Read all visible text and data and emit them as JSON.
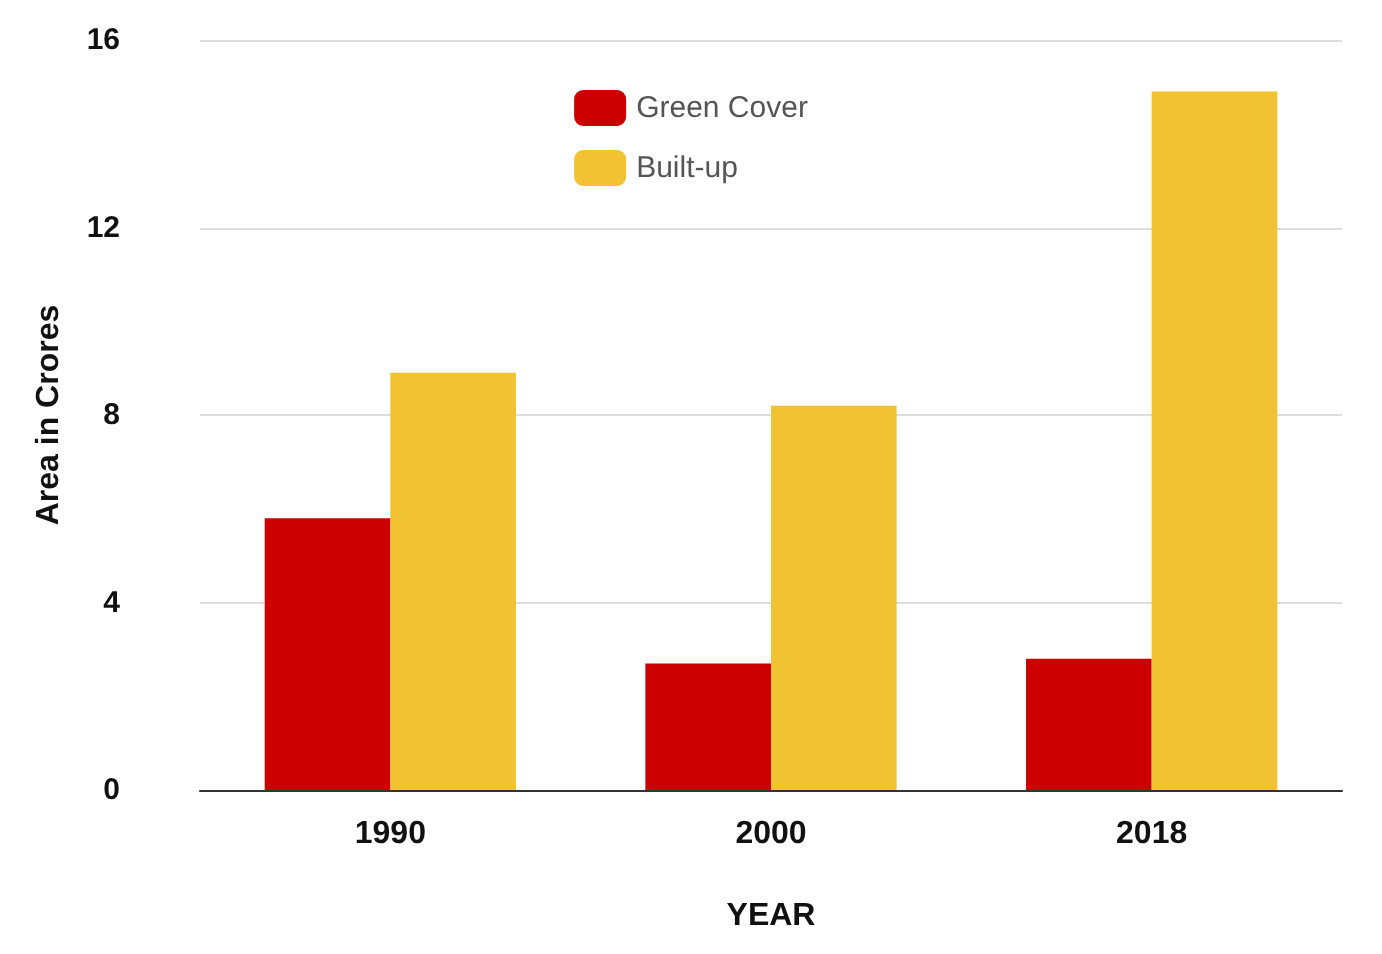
{
  "chart_data": {
    "type": "bar",
    "xlabel": "YEAR",
    "ylabel": "Area in Crores",
    "categories": [
      "1990",
      "2000",
      "2018"
    ],
    "series": [
      {
        "name": "Green Cover",
        "color": "#cc0000",
        "values": [
          5.8,
          2.7,
          2.8
        ]
      },
      {
        "name": "Built-up",
        "color": "#f1c232",
        "values": [
          8.9,
          8.2,
          14.9
        ]
      }
    ],
    "ylim": [
      0,
      16
    ],
    "yticks": [
      0,
      4,
      8,
      12,
      16
    ],
    "grid": "y",
    "legend": "top"
  }
}
